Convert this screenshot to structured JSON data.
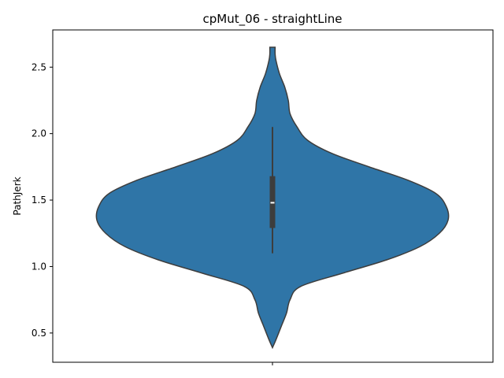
{
  "chart_data": {
    "type": "violin",
    "title": "cpMut_06 - straightLine",
    "xlabel": "",
    "ylabel": "PathJerk",
    "categories": [
      ""
    ],
    "ylim": [
      0.28,
      2.78
    ],
    "yticks": [
      0.5,
      1.0,
      1.5,
      2.0,
      2.5
    ],
    "ytick_labels": [
      "0.5",
      "1.0",
      "1.5",
      "2.0",
      "2.5"
    ],
    "grid": false,
    "colors": {
      "violin_fill": "#2f75a7",
      "violin_edge": "#3d3d3d",
      "box": "#3d3d3d",
      "median": "#ffffff"
    },
    "violin": {
      "min": 0.39,
      "max": 2.65,
      "q1": 1.29,
      "median": 1.48,
      "q3": 1.68,
      "whisker_low": 1.1,
      "whisker_high": 2.05,
      "density_profile": [
        [
          0.39,
          0.0
        ],
        [
          0.45,
          0.02
        ],
        [
          0.55,
          0.05
        ],
        [
          0.65,
          0.08
        ],
        [
          0.75,
          0.1
        ],
        [
          0.85,
          0.16
        ],
        [
          0.95,
          0.4
        ],
        [
          1.05,
          0.65
        ],
        [
          1.15,
          0.84
        ],
        [
          1.25,
          0.95
        ],
        [
          1.35,
          1.0
        ],
        [
          1.45,
          0.99
        ],
        [
          1.55,
          0.93
        ],
        [
          1.65,
          0.77
        ],
        [
          1.75,
          0.55
        ],
        [
          1.85,
          0.34
        ],
        [
          1.95,
          0.2
        ],
        [
          2.05,
          0.14
        ],
        [
          2.15,
          0.1
        ],
        [
          2.25,
          0.09
        ],
        [
          2.35,
          0.07
        ],
        [
          2.45,
          0.04
        ],
        [
          2.55,
          0.02
        ],
        [
          2.6,
          0.015
        ],
        [
          2.65,
          0.015
        ]
      ]
    }
  }
}
